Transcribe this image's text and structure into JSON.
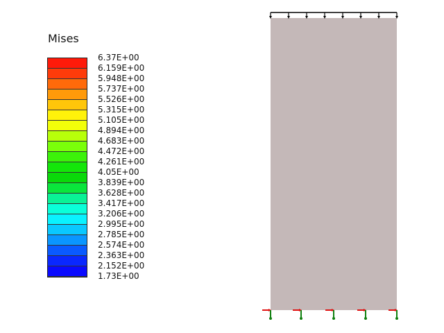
{
  "legend": {
    "title": "Mises",
    "labels": [
      "6.37E+00",
      "6.159E+00",
      "5.948E+00",
      "5.737E+00",
      "5.526E+00",
      "5.315E+00",
      "5.105E+00",
      "4.894E+00",
      "4.683E+00",
      "4.472E+00",
      "4.261E+00",
      "4.05E+00",
      "3.839E+00",
      "3.628E+00",
      "3.417E+00",
      "3.206E+00",
      "2.995E+00",
      "2.785E+00",
      "2.574E+00",
      "2.363E+00",
      "2.152E+00",
      "1.73E+00"
    ],
    "colors": [
      "#ff1a0a",
      "#ff3b0a",
      "#ff6a0a",
      "#ff9a0a",
      "#ffc60a",
      "#fff20a",
      "#f2ff0a",
      "#b8ff0a",
      "#7aff0a",
      "#3cf20a",
      "#14e60a",
      "#0ad90a",
      "#0ae63c",
      "#0af296",
      "#0affd9",
      "#0af2ff",
      "#0ac8ff",
      "#0a96ff",
      "#0a5aff",
      "#0a28ff",
      "#0a0aff"
    ]
  },
  "model": {
    "fill": "#c4b8b8"
  },
  "colors": {
    "load_arrow": "#000000",
    "constraint_x": "#e01010",
    "constraint_y": "#108010"
  }
}
